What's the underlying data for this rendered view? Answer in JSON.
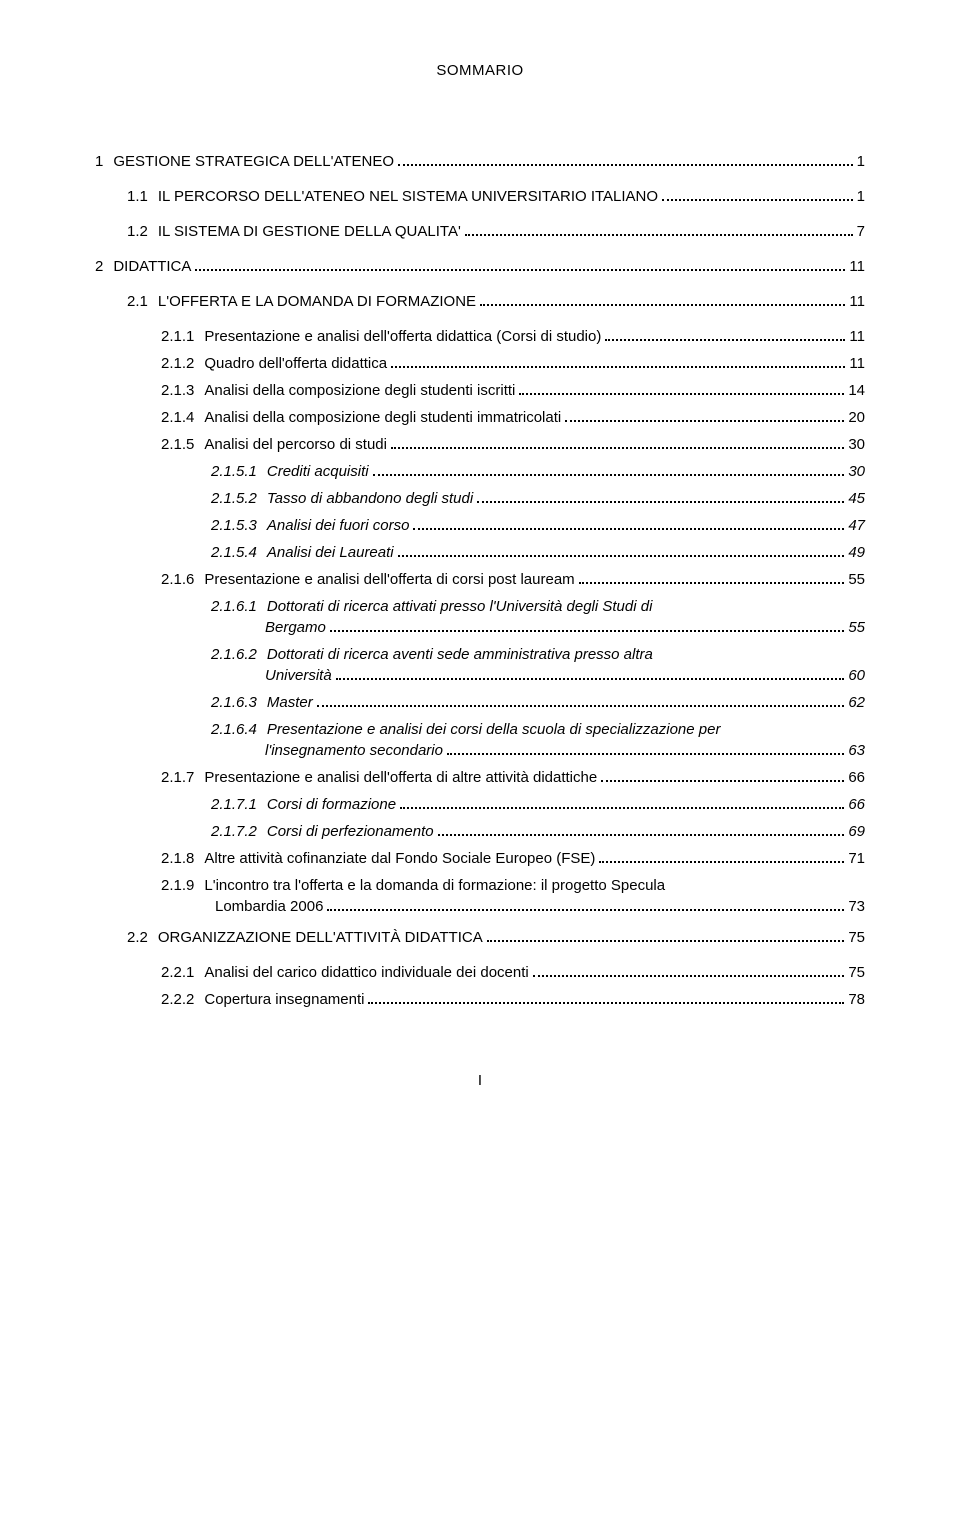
{
  "header": "SOMMARIO",
  "footer": "I",
  "toc": [
    {
      "lvl": 1,
      "num": "1",
      "label": "GESTIONE STRATEGICA DELL'ATENEO",
      "page": "1",
      "italic": false
    },
    {
      "lvl": 2,
      "num": "1.1",
      "label": "IL PERCORSO DELL'ATENEO NEL SISTEMA UNIVERSITARIO  ITALIANO",
      "page": "1",
      "italic": false
    },
    {
      "lvl": 2,
      "num": "1.2",
      "label": "IL SISTEMA DI GESTIONE DELLA QUALITA'",
      "page": "7",
      "italic": false
    },
    {
      "lvl": 1,
      "num": "2",
      "label": "DIDATTICA",
      "page": "11",
      "italic": false
    },
    {
      "lvl": 2,
      "num": "2.1",
      "label": "L'OFFERTA E LA DOMANDA DI FORMAZIONE",
      "page": "11",
      "italic": false
    },
    {
      "lvl": 3,
      "num": "2.1.1",
      "label": "Presentazione e analisi dell'offerta didattica (Corsi di studio)",
      "page": "11",
      "italic": false
    },
    {
      "lvl": 3,
      "num": "2.1.2",
      "label": "Quadro dell'offerta didattica",
      "page": "11",
      "italic": false
    },
    {
      "lvl": 3,
      "num": "2.1.3",
      "label": "Analisi della composizione degli studenti iscritti",
      "page": "14",
      "italic": false
    },
    {
      "lvl": 3,
      "num": "2.1.4",
      "label": "Analisi della composizione degli studenti immatricolati",
      "page": "20",
      "italic": false
    },
    {
      "lvl": 3,
      "num": "2.1.5",
      "label": "Analisi del percorso di studi",
      "page": "30",
      "italic": false
    },
    {
      "lvl": 4,
      "num": "2.1.5.1",
      "label": "Crediti acquisiti",
      "page": "30",
      "italic": true
    },
    {
      "lvl": 4,
      "num": "2.1.5.2",
      "label": "Tasso di abbandono degli studi",
      "page": "45",
      "italic": true
    },
    {
      "lvl": 4,
      "num": "2.1.5.3",
      "label": "Analisi dei fuori corso",
      "page": "47",
      "italic": true
    },
    {
      "lvl": 4,
      "num": "2.1.5.4",
      "label": "Analisi dei Laureati",
      "page": "49",
      "italic": true
    },
    {
      "lvl": 3,
      "num": "2.1.6",
      "label": "Presentazione e analisi dell'offerta di corsi post lauream",
      "page": "55",
      "italic": false
    },
    {
      "lvl": 4,
      "num": "2.1.6.1",
      "label": "Dottorati di ricerca attivati presso l'Università degli Studi di",
      "label2": "Bergamo",
      "page": "55",
      "italic": true
    },
    {
      "lvl": 4,
      "num": "2.1.6.2",
      "label": "Dottorati di ricerca aventi sede amministrativa presso altra",
      "label2": "Università",
      "page": "60",
      "italic": true
    },
    {
      "lvl": 4,
      "num": "2.1.6.3",
      "label": "Master",
      "page": "62",
      "italic": true
    },
    {
      "lvl": 4,
      "num": "2.1.6.4",
      "label": "Presentazione e analisi dei corsi della scuola di specializzazione per",
      "label2": "l'insegnamento secondario",
      "page": "63",
      "italic": true
    },
    {
      "lvl": 3,
      "num": "2.1.7",
      "label": "Presentazione e analisi dell'offerta di altre attività didattiche",
      "page": "66",
      "italic": false
    },
    {
      "lvl": 4,
      "num": "2.1.7.1",
      "label": "Corsi di formazione",
      "page": "66",
      "italic": true
    },
    {
      "lvl": 4,
      "num": "2.1.7.2",
      "label": "Corsi di perfezionamento",
      "page": "69",
      "italic": true
    },
    {
      "lvl": 3,
      "num": "2.1.8",
      "label": "Altre attività cofinanziate dal Fondo Sociale Europeo (FSE)",
      "page": "71",
      "italic": false
    },
    {
      "lvl": 3,
      "num": "2.1.9",
      "label": "L'incontro tra l'offerta e la domanda di formazione: il progetto Specula",
      "label2": "Lombardia 2006",
      "page": "73",
      "italic": false
    },
    {
      "lvl": 2,
      "num": "2.2",
      "label": "ORGANIZZAZIONE DELL'ATTIVITÀ DIDATTICA",
      "page": "75",
      "italic": false
    },
    {
      "lvl": 3,
      "num": "2.2.1",
      "label": "Analisi del carico didattico individuale dei docenti",
      "page": "75",
      "italic": false
    },
    {
      "lvl": 3,
      "num": "2.2.2",
      "label": "Copertura insegnamenti",
      "page": "78",
      "italic": false
    }
  ]
}
